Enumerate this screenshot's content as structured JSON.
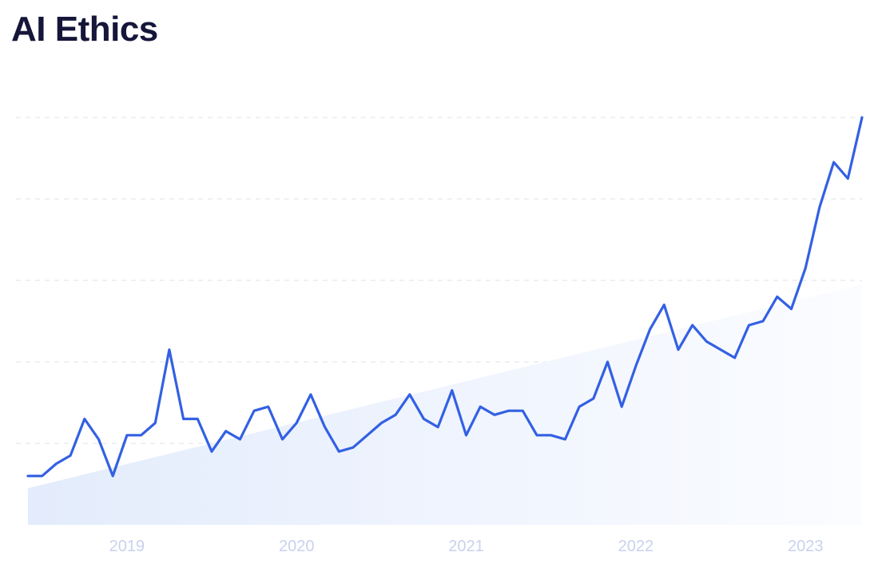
{
  "title": "AI Ethics",
  "colors": {
    "line": "#3360e3",
    "trend_fill_start": "#e3ecfc",
    "trend_fill_end": "#fbfcff",
    "grid": "#dde2ea",
    "tick_text": "#c9d2ee",
    "title_text": "#15163a"
  },
  "chart_data": {
    "type": "line",
    "title": "AI Ethics",
    "xlabel": "",
    "ylabel": "",
    "grid": true,
    "y_axis_labels_visible": false,
    "x_tick_labels": [
      "2019",
      "2020",
      "2021",
      "2022",
      "2023"
    ],
    "x_tick_indices": [
      7,
      19,
      31,
      43,
      55
    ],
    "ylim": [
      0,
      100
    ],
    "y_gridlines": [
      20,
      40,
      60,
      80,
      100
    ],
    "series": [
      {
        "values": [
          12,
          12,
          15,
          17,
          26,
          21,
          12,
          22,
          22,
          25,
          43,
          26,
          26,
          18,
          23,
          21,
          28,
          29,
          21,
          25,
          32,
          24,
          18,
          19,
          22,
          25,
          27,
          32,
          26,
          24,
          33,
          22,
          29,
          27,
          28,
          28,
          22,
          22,
          21,
          29,
          31,
          40,
          29,
          39,
          48,
          54,
          43,
          49,
          45,
          43,
          41,
          49,
          50,
          56,
          53,
          63,
          78,
          89,
          85,
          100
        ]
      }
    ],
    "trend": {
      "type": "area",
      "values": [
        9,
        59
      ]
    }
  }
}
